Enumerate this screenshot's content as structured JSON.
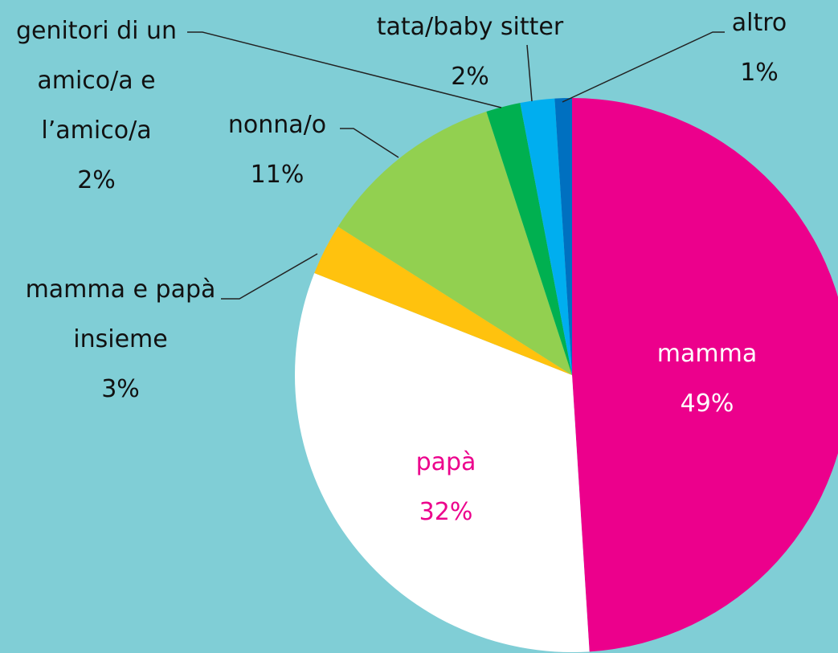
{
  "chart_data": {
    "type": "pie",
    "categories": [
      "mamma",
      "papà",
      "mamma e papà insieme",
      "nonna/o",
      "genitori di un amico/a e l’amico/a",
      "tata/baby sitter",
      "altro"
    ],
    "values": [
      49,
      32,
      3,
      11,
      2,
      2,
      1
    ],
    "value_labels": [
      "49%",
      "32%",
      "3%",
      "11%",
      "2%",
      "2%",
      "1%"
    ],
    "colors": [
      "#ec008c",
      "#ffffff",
      "#ffc20e",
      "#92d050",
      "#00b050",
      "#00aeef",
      "#0070c0"
    ]
  }
}
